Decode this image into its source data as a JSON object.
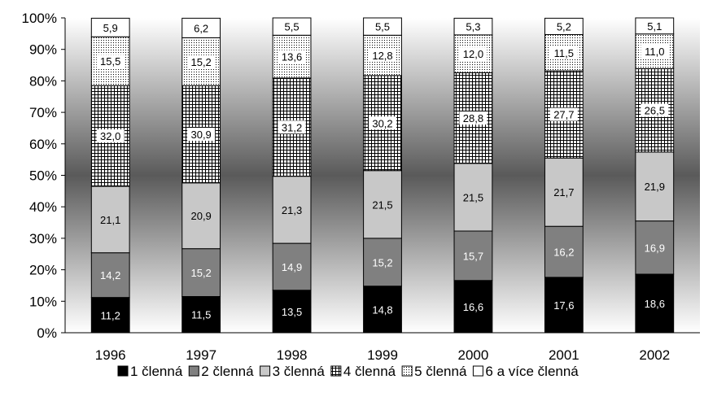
{
  "chart_data": {
    "type": "bar",
    "stacked": true,
    "percent": true,
    "categories": [
      "1996",
      "1997",
      "1998",
      "1999",
      "2000",
      "2001",
      "2002"
    ],
    "series": [
      {
        "name": "1 členná",
        "values": [
          11.2,
          11.5,
          13.5,
          14.8,
          16.6,
          17.6,
          18.6
        ],
        "color": "#000000",
        "pattern": "solid",
        "labels": [
          "11,2",
          "11,5",
          "13,5",
          "14,8",
          "16,6",
          "17,6",
          "18,6"
        ]
      },
      {
        "name": "2 členná",
        "values": [
          14.2,
          15.2,
          14.9,
          15.2,
          15.7,
          16.2,
          16.9
        ],
        "color": "#808080",
        "pattern": "solid",
        "labels": [
          "14,2",
          "15,2",
          "14,9",
          "15,2",
          "15,7",
          "16,2",
          "16,9"
        ]
      },
      {
        "name": "3 členná",
        "values": [
          21.1,
          20.9,
          21.3,
          21.5,
          21.5,
          21.7,
          21.9
        ],
        "color": "#c8c8c8",
        "pattern": "solid",
        "labels": [
          "21,1",
          "20,9",
          "21,3",
          "21,5",
          "21,5",
          "21,7",
          "21,9"
        ]
      },
      {
        "name": "4 členná",
        "values": [
          32.0,
          30.9,
          31.2,
          30.2,
          28.8,
          27.7,
          26.5
        ],
        "color": "#ffffff",
        "pattern": "grid",
        "labels": [
          "32,0",
          "30,9",
          "31,2",
          "30,2",
          "28,8",
          "27,7",
          "26,5"
        ]
      },
      {
        "name": "5 členná",
        "values": [
          15.5,
          15.2,
          13.6,
          12.8,
          12.0,
          11.5,
          11.0
        ],
        "color": "#ffffff",
        "pattern": "dots",
        "labels": [
          "15,5",
          "15,2",
          "13,6",
          "12,8",
          "12,0",
          "11,5",
          "11,0"
        ]
      },
      {
        "name": "6 a více členná",
        "values": [
          5.9,
          6.2,
          5.5,
          5.5,
          5.3,
          5.2,
          5.1
        ],
        "color": "#ffffff",
        "pattern": "solid",
        "labels": [
          "5,9",
          "6,2",
          "5,5",
          "5,5",
          "5,3",
          "5,2",
          "5,1"
        ]
      }
    ],
    "ylim": [
      0,
      100
    ],
    "yticks": [
      "0%",
      "10%",
      "20%",
      "30%",
      "40%",
      "50%",
      "60%",
      "70%",
      "80%",
      "90%",
      "100%"
    ],
    "legend_position": "bottom",
    "grid": false,
    "background": "vertical-gradient"
  }
}
